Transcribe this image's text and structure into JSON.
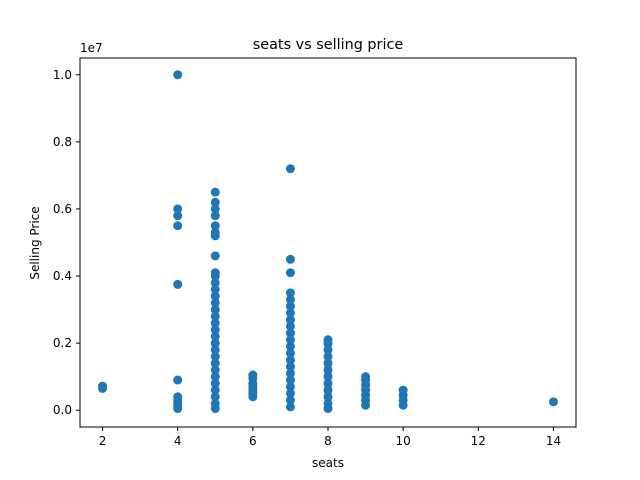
{
  "chart_data": {
    "type": "scatter",
    "title": "seats vs selling price",
    "xlabel": "seats",
    "ylabel": "Selling Price",
    "y_offset_label": "1e7",
    "xlim": [
      1.4,
      14.6
    ],
    "ylim": [
      -0.05,
      1.05
    ],
    "x_ticks": [
      2,
      4,
      6,
      8,
      10,
      12,
      14
    ],
    "x_tick_labels": [
      "2",
      "4",
      "6",
      "8",
      "10",
      "12",
      "14"
    ],
    "y_ticks": [
      0.0,
      0.2,
      0.4,
      0.6,
      0.8,
      1.0
    ],
    "y_tick_labels": [
      "0.0",
      "0.2",
      "0.4",
      "0.6",
      "0.8",
      "1.0"
    ],
    "y_scale_note": "values in units of 1e7",
    "grid": false,
    "marker_color": "#1f77b4",
    "series": [
      {
        "points": [
          {
            "x": 2,
            "y": 0.065
          },
          {
            "x": 2,
            "y": 0.072
          },
          {
            "x": 4,
            "y": 1.0
          },
          {
            "x": 4,
            "y": 0.6
          },
          {
            "x": 4,
            "y": 0.58
          },
          {
            "x": 4,
            "y": 0.55
          },
          {
            "x": 4,
            "y": 0.375
          },
          {
            "x": 4,
            "y": 0.09
          },
          {
            "x": 4,
            "y": 0.04
          },
          {
            "x": 4,
            "y": 0.03
          },
          {
            "x": 4,
            "y": 0.02
          },
          {
            "x": 4,
            "y": 0.01
          },
          {
            "x": 4,
            "y": 0.005
          },
          {
            "x": 5,
            "y": 0.65
          },
          {
            "x": 5,
            "y": 0.62
          },
          {
            "x": 5,
            "y": 0.6
          },
          {
            "x": 5,
            "y": 0.58
          },
          {
            "x": 5,
            "y": 0.55
          },
          {
            "x": 5,
            "y": 0.53
          },
          {
            "x": 5,
            "y": 0.52
          },
          {
            "x": 5,
            "y": 0.46
          },
          {
            "x": 5,
            "y": 0.41
          },
          {
            "x": 5,
            "y": 0.4
          },
          {
            "x": 5,
            "y": 0.38
          },
          {
            "x": 5,
            "y": 0.36
          },
          {
            "x": 5,
            "y": 0.34
          },
          {
            "x": 5,
            "y": 0.32
          },
          {
            "x": 5,
            "y": 0.3
          },
          {
            "x": 5,
            "y": 0.28
          },
          {
            "x": 5,
            "y": 0.26
          },
          {
            "x": 5,
            "y": 0.24
          },
          {
            "x": 5,
            "y": 0.22
          },
          {
            "x": 5,
            "y": 0.2
          },
          {
            "x": 5,
            "y": 0.18
          },
          {
            "x": 5,
            "y": 0.16
          },
          {
            "x": 5,
            "y": 0.14
          },
          {
            "x": 5,
            "y": 0.12
          },
          {
            "x": 5,
            "y": 0.1
          },
          {
            "x": 5,
            "y": 0.08
          },
          {
            "x": 5,
            "y": 0.06
          },
          {
            "x": 5,
            "y": 0.04
          },
          {
            "x": 5,
            "y": 0.02
          },
          {
            "x": 5,
            "y": 0.005
          },
          {
            "x": 6,
            "y": 0.105
          },
          {
            "x": 6,
            "y": 0.095
          },
          {
            "x": 6,
            "y": 0.08
          },
          {
            "x": 6,
            "y": 0.07
          },
          {
            "x": 6,
            "y": 0.06
          },
          {
            "x": 6,
            "y": 0.05
          },
          {
            "x": 6,
            "y": 0.04
          },
          {
            "x": 7,
            "y": 0.72
          },
          {
            "x": 7,
            "y": 0.45
          },
          {
            "x": 7,
            "y": 0.41
          },
          {
            "x": 7,
            "y": 0.35
          },
          {
            "x": 7,
            "y": 0.33
          },
          {
            "x": 7,
            "y": 0.31
          },
          {
            "x": 7,
            "y": 0.29
          },
          {
            "x": 7,
            "y": 0.27
          },
          {
            "x": 7,
            "y": 0.25
          },
          {
            "x": 7,
            "y": 0.23
          },
          {
            "x": 7,
            "y": 0.21
          },
          {
            "x": 7,
            "y": 0.19
          },
          {
            "x": 7,
            "y": 0.17
          },
          {
            "x": 7,
            "y": 0.15
          },
          {
            "x": 7,
            "y": 0.13
          },
          {
            "x": 7,
            "y": 0.11
          },
          {
            "x": 7,
            "y": 0.09
          },
          {
            "x": 7,
            "y": 0.07
          },
          {
            "x": 7,
            "y": 0.05
          },
          {
            "x": 7,
            "y": 0.03
          },
          {
            "x": 7,
            "y": 0.01
          },
          {
            "x": 8,
            "y": 0.21
          },
          {
            "x": 8,
            "y": 0.2
          },
          {
            "x": 8,
            "y": 0.18
          },
          {
            "x": 8,
            "y": 0.16
          },
          {
            "x": 8,
            "y": 0.14
          },
          {
            "x": 8,
            "y": 0.12
          },
          {
            "x": 8,
            "y": 0.1
          },
          {
            "x": 8,
            "y": 0.08
          },
          {
            "x": 8,
            "y": 0.06
          },
          {
            "x": 8,
            "y": 0.04
          },
          {
            "x": 8,
            "y": 0.02
          },
          {
            "x": 8,
            "y": 0.005
          },
          {
            "x": 9,
            "y": 0.1
          },
          {
            "x": 9,
            "y": 0.09
          },
          {
            "x": 9,
            "y": 0.075
          },
          {
            "x": 9,
            "y": 0.06
          },
          {
            "x": 9,
            "y": 0.045
          },
          {
            "x": 9,
            "y": 0.03
          },
          {
            "x": 9,
            "y": 0.015
          },
          {
            "x": 10,
            "y": 0.06
          },
          {
            "x": 10,
            "y": 0.045
          },
          {
            "x": 10,
            "y": 0.03
          },
          {
            "x": 10,
            "y": 0.015
          },
          {
            "x": 14,
            "y": 0.025
          }
        ]
      }
    ]
  }
}
